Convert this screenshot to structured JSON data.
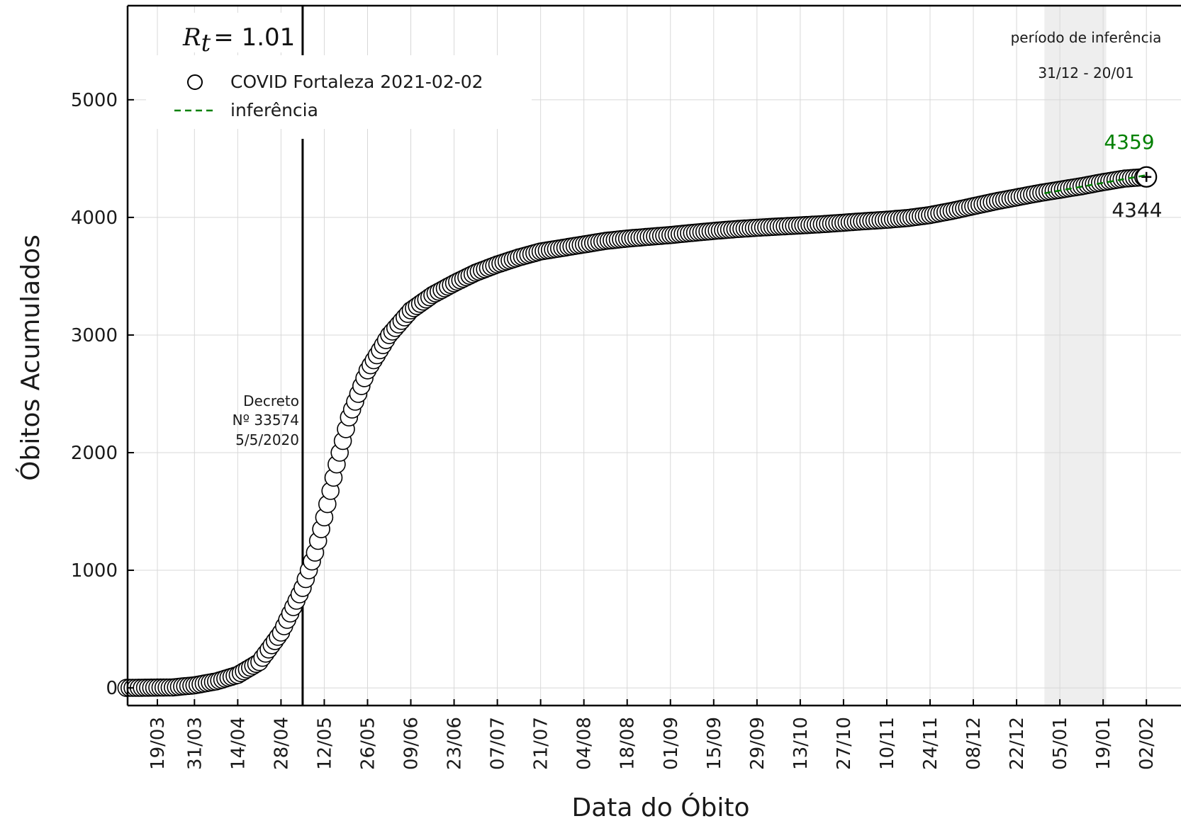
{
  "chart_data": {
    "type": "scatter",
    "xlabel": "Data do Óbito",
    "ylabel": "Óbitos Acumulados",
    "ylim": [
      -150,
      5800
    ],
    "yticks": [
      0,
      1000,
      2000,
      3000,
      4000,
      5000
    ],
    "x_range": [
      "2020-03-09",
      "2021-02-02"
    ],
    "x_ticks": [
      {
        "date": "2020-03-19",
        "label": "19/03"
      },
      {
        "date": "2020-03-31",
        "label": "31/03"
      },
      {
        "date": "2020-04-14",
        "label": "14/04"
      },
      {
        "date": "2020-04-28",
        "label": "28/04"
      },
      {
        "date": "2020-05-12",
        "label": "12/05"
      },
      {
        "date": "2020-05-26",
        "label": "26/05"
      },
      {
        "date": "2020-06-09",
        "label": "09/06"
      },
      {
        "date": "2020-06-23",
        "label": "23/06"
      },
      {
        "date": "2020-07-07",
        "label": "07/07"
      },
      {
        "date": "2020-07-21",
        "label": "21/07"
      },
      {
        "date": "2020-08-04",
        "label": "04/08"
      },
      {
        "date": "2020-08-18",
        "label": "18/08"
      },
      {
        "date": "2020-09-01",
        "label": "01/09"
      },
      {
        "date": "2020-09-15",
        "label": "15/09"
      },
      {
        "date": "2020-09-29",
        "label": "29/09"
      },
      {
        "date": "2020-10-13",
        "label": "13/10"
      },
      {
        "date": "2020-10-27",
        "label": "27/10"
      },
      {
        "date": "2020-11-10",
        "label": "10/11"
      },
      {
        "date": "2020-11-24",
        "label": "24/11"
      },
      {
        "date": "2020-12-08",
        "label": "08/12"
      },
      {
        "date": "2020-12-22",
        "label": "22/12"
      },
      {
        "date": "2021-01-05",
        "label": "05/01"
      },
      {
        "date": "2021-01-19",
        "label": "19/01"
      },
      {
        "date": "2021-02-02",
        "label": "02/02"
      }
    ],
    "grid": true,
    "legend_placement": "top-left",
    "series": [
      {
        "name": "COVID Fortaleza 2021-02-02",
        "marker": "open-circle",
        "color": "#000000",
        "points": [
          {
            "x": "2020-03-09",
            "y": 0
          },
          {
            "x": "2020-03-24",
            "y": 4
          },
          {
            "x": "2020-03-31",
            "y": 22
          },
          {
            "x": "2020-04-07",
            "y": 55
          },
          {
            "x": "2020-04-14",
            "y": 110
          },
          {
            "x": "2020-04-21",
            "y": 220
          },
          {
            "x": "2020-04-28",
            "y": 470
          },
          {
            "x": "2020-05-05",
            "y": 850
          },
          {
            "x": "2020-05-09",
            "y": 1150
          },
          {
            "x": "2020-05-12",
            "y": 1450
          },
          {
            "x": "2020-05-16",
            "y": 1900
          },
          {
            "x": "2020-05-20",
            "y": 2300
          },
          {
            "x": "2020-05-26",
            "y": 2700
          },
          {
            "x": "2020-06-02",
            "y": 3000
          },
          {
            "x": "2020-06-09",
            "y": 3210
          },
          {
            "x": "2020-06-16",
            "y": 3340
          },
          {
            "x": "2020-06-23",
            "y": 3440
          },
          {
            "x": "2020-06-30",
            "y": 3530
          },
          {
            "x": "2020-07-07",
            "y": 3600
          },
          {
            "x": "2020-07-14",
            "y": 3660
          },
          {
            "x": "2020-07-21",
            "y": 3710
          },
          {
            "x": "2020-07-28",
            "y": 3740
          },
          {
            "x": "2020-08-04",
            "y": 3770
          },
          {
            "x": "2020-08-11",
            "y": 3800
          },
          {
            "x": "2020-08-18",
            "y": 3820
          },
          {
            "x": "2020-08-25",
            "y": 3835
          },
          {
            "x": "2020-09-01",
            "y": 3850
          },
          {
            "x": "2020-09-08",
            "y": 3868
          },
          {
            "x": "2020-09-15",
            "y": 3885
          },
          {
            "x": "2020-09-22",
            "y": 3900
          },
          {
            "x": "2020-09-29",
            "y": 3912
          },
          {
            "x": "2020-10-06",
            "y": 3922
          },
          {
            "x": "2020-10-13",
            "y": 3932
          },
          {
            "x": "2020-10-20",
            "y": 3942
          },
          {
            "x": "2020-10-27",
            "y": 3955
          },
          {
            "x": "2020-11-03",
            "y": 3968
          },
          {
            "x": "2020-11-10",
            "y": 3980
          },
          {
            "x": "2020-11-17",
            "y": 3995
          },
          {
            "x": "2020-11-24",
            "y": 4020
          },
          {
            "x": "2020-12-01",
            "y": 4055
          },
          {
            "x": "2020-12-08",
            "y": 4095
          },
          {
            "x": "2020-12-15",
            "y": 4135
          },
          {
            "x": "2020-12-22",
            "y": 4170
          },
          {
            "x": "2020-12-29",
            "y": 4205
          },
          {
            "x": "2021-01-05",
            "y": 4235
          },
          {
            "x": "2021-01-12",
            "y": 4265
          },
          {
            "x": "2021-01-19",
            "y": 4300
          },
          {
            "x": "2021-01-26",
            "y": 4330
          },
          {
            "x": "2021-02-02",
            "y": 4344
          }
        ]
      },
      {
        "name": "inferência",
        "style": "dashed",
        "color": "#008000",
        "points": [
          {
            "x": "2020-12-31",
            "y": 4205
          },
          {
            "x": "2021-02-02",
            "y": 4359
          }
        ]
      }
    ],
    "shaded_region": {
      "from": "2020-12-31",
      "to": "2021-01-20",
      "color": "#d9d9d9"
    },
    "vertical_line": {
      "x": "2020-05-05",
      "color": "#000000"
    },
    "annotations": {
      "rt": {
        "symbol": "R",
        "subscript": "t",
        "value": "= 1.01"
      },
      "decree": [
        "Decreto",
        "Nº 33574",
        "5/5/2020"
      ],
      "inference_period_title": "período de inferência",
      "inference_period_range": "31/12 - 20/01",
      "predicted_value": "4359",
      "observed_value": "4344"
    }
  }
}
